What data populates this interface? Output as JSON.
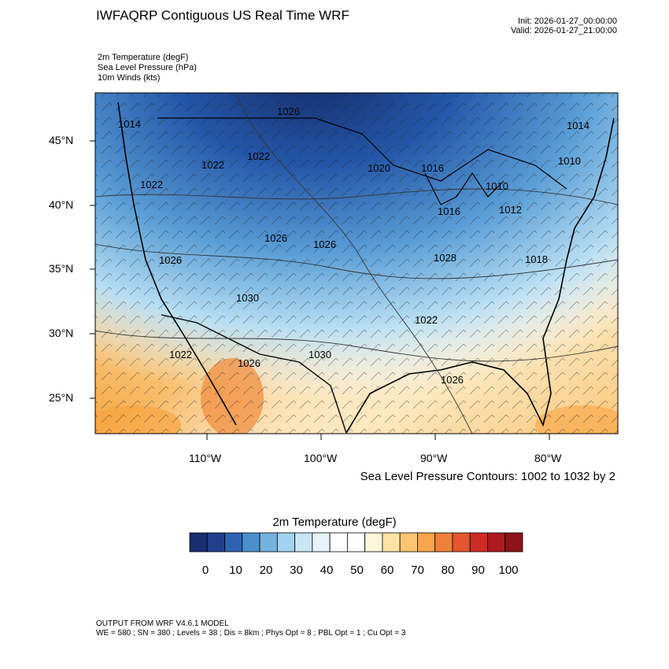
{
  "title": "IWFAQRP Contiguous US Real Time WRF",
  "init": "Init: 2026-01-27_00:00:00",
  "valid": "Valid: 2026-01-27_21:00:00",
  "fields": [
    "2m Temperature   (degF)",
    "Sea Level Pressure   (hPa)",
    "10m Winds   (kts)"
  ],
  "lat_labels": [
    "45°N",
    "40°N",
    "35°N",
    "30°N",
    "25°N"
  ],
  "lon_labels": [
    "110°W",
    "100°W",
    "90°W",
    "80°W"
  ],
  "contour_note": "Sea Level Pressure Contours: 1002 to 1032 by 2",
  "colorbar": {
    "title": "2m Temperature  (degF)",
    "labels": [
      "0",
      "10",
      "20",
      "30",
      "40",
      "50",
      "60",
      "70",
      "80",
      "90",
      "100"
    ],
    "colors": [
      "#182e6e",
      "#213f8c",
      "#2e62b3",
      "#4a8fcc",
      "#73b2df",
      "#a4d3ef",
      "#c8e6f6",
      "#e7f3fa",
      "#ffffff",
      "#ffffff",
      "#fff7dc",
      "#fde4a4",
      "#fcc572",
      "#f8a64a",
      "#f07f39",
      "#e4562e",
      "#cc2c25",
      "#ad1a1e",
      "#8c1316"
    ]
  },
  "pressure_labels": [
    "1014",
    "1026",
    "1022",
    "1022",
    "1022",
    "1020",
    "1016",
    "1014",
    "1010",
    "1010",
    "1012",
    "1016",
    "1026",
    "1026",
    "1026",
    "1018",
    "1028",
    "1030",
    "1022",
    "1022",
    "1026",
    "1030",
    "1026"
  ],
  "footer": {
    "line1": "OUTPUT FROM WRF V4.6.1 MODEL",
    "line2": "WE = 580 ; SN = 380 ; Levels = 38 ; Dis = 8km ; Phys Opt = 8 ; PBL Opt = 1 ; Cu Opt = 3"
  }
}
